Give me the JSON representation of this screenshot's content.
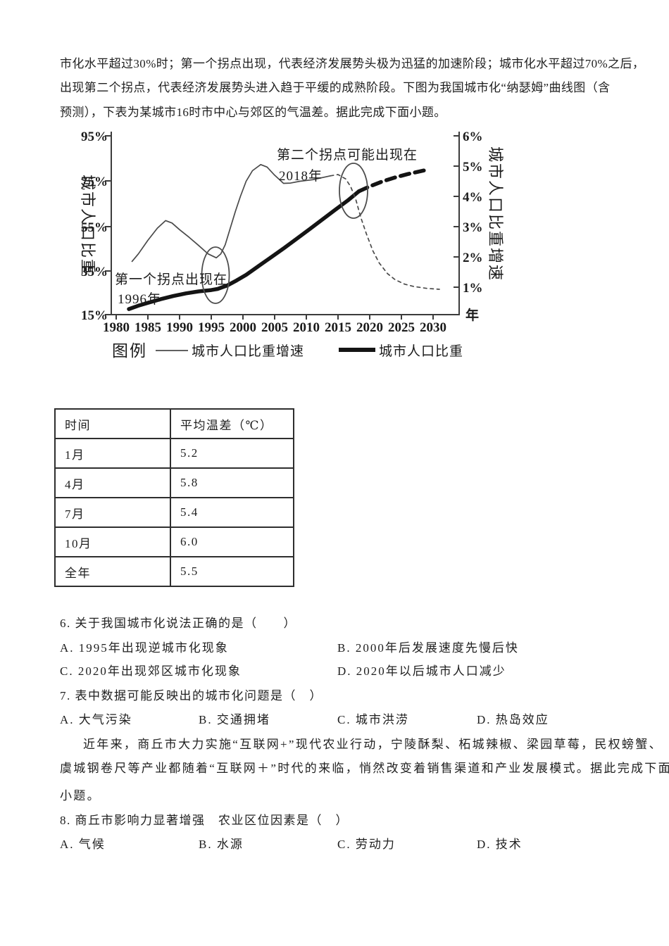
{
  "page": {
    "background": "#ffffff",
    "text_color": "#1f1f1f"
  },
  "intro": {
    "line1": "市化水平超过30%时；第一个拐点出现，代表经济发展势头极为迅猛的加速阶段；城市化水平超过70%之后，",
    "line2": "出现第二个拐点，代表经济发展势头进入趋于平缓的成熟阶段。下图为我国城市化“纳瑟姆”曲线图（含",
    "line3": "预测），下表为某城市16时市中心与郊区的气温差。据此完成下面小题。"
  },
  "figure": {
    "left_axis_label": "城市人口比重",
    "right_axis_label": "城市人口比重增速",
    "x_unit": "年",
    "left_ticks": [
      "95%",
      "75%",
      "55%",
      "35%",
      "15%"
    ],
    "right_ticks": [
      "6%",
      "5%",
      "4%",
      "3%",
      "2%",
      "1%"
    ],
    "x_ticks": [
      "1980",
      "1985",
      "1990",
      "1995",
      "2000",
      "2005",
      "2010",
      "2015",
      "2020",
      "2025",
      "2030"
    ],
    "annotation_first_line1": "第一个拐点出现在",
    "annotation_first_line2": "1996年",
    "annotation_second_line1": "第二个拐点可能出现在",
    "annotation_second_line2": "2018年",
    "legend_title": "图例",
    "legend_thin": "城市人口比重增速",
    "legend_thick": "城市人口比重"
  },
  "chart_data": {
    "type": "line",
    "title": "我国城市化“纳瑟姆”曲线图（含预测）",
    "x_axis": {
      "unit": "年",
      "ticks": [
        1980,
        1985,
        1990,
        1995,
        2000,
        2005,
        2010,
        2015,
        2020,
        2025,
        2030
      ]
    },
    "left_axis": {
      "label": "城市人口比重",
      "unit": "%",
      "range": [
        15,
        95
      ],
      "ticks": [
        15,
        35,
        55,
        75,
        95
      ]
    },
    "right_axis": {
      "label": "城市人口比重增速",
      "unit": "%",
      "range": [
        0,
        6
      ],
      "ticks": [
        1,
        2,
        3,
        4,
        5,
        6
      ]
    },
    "annotations": [
      "第一个拐点出现在1996年",
      "第二个拐点可能出现在2018年"
    ],
    "legend_position": "bottom",
    "series": [
      {
        "name": "城市人口比重",
        "axis": "left",
        "line": "thick",
        "dash_pattern": "13 8",
        "solid": [
          [
            1982,
            17.5
          ],
          [
            1983.5,
            19
          ],
          [
            1985,
            20.3
          ],
          [
            1987,
            21.9
          ],
          [
            1989,
            23.3
          ],
          [
            1991,
            24.5
          ],
          [
            1993,
            25.4
          ],
          [
            1995,
            26
          ],
          [
            1996,
            26.5
          ],
          [
            1997.5,
            28
          ],
          [
            1999,
            30.3
          ],
          [
            2000.5,
            32.8
          ],
          [
            2002.5,
            36.8
          ],
          [
            2004.5,
            40.8
          ],
          [
            2006.5,
            44.8
          ],
          [
            2008.5,
            49
          ],
          [
            2010.5,
            53.2
          ],
          [
            2012.5,
            57.5
          ],
          [
            2014.5,
            61.8
          ],
          [
            2016.5,
            66
          ],
          [
            2018.3,
            70.2
          ]
        ],
        "dashed": [
          [
            2018.3,
            70.2
          ],
          [
            2020,
            72.4
          ],
          [
            2022,
            74.6
          ],
          [
            2024,
            76.4
          ],
          [
            2026,
            77.9
          ],
          [
            2029,
            79.8
          ]
        ]
      },
      {
        "name": "城市人口比重增速",
        "axis": "right",
        "line": "thin",
        "dash_pattern": "4.5 5",
        "solid": [
          [
            1982.5,
            1.85
          ],
          [
            1983.5,
            2.1
          ],
          [
            1985,
            2.55
          ],
          [
            1986.5,
            2.95
          ],
          [
            1987.8,
            3.2
          ],
          [
            1988.8,
            3.12
          ],
          [
            1990,
            2.9
          ],
          [
            1991.5,
            2.65
          ],
          [
            1993,
            2.38
          ],
          [
            1994.5,
            2.1
          ],
          [
            1995.8,
            1.97
          ],
          [
            1996.5,
            2.1
          ],
          [
            1997.2,
            2.4
          ],
          [
            1998,
            2.95
          ],
          [
            1998.8,
            3.5
          ],
          [
            1999.6,
            4
          ],
          [
            2000.5,
            4.5
          ],
          [
            2001.5,
            4.85
          ],
          [
            2002.8,
            5.05
          ],
          [
            2003.8,
            4.97
          ],
          [
            2005,
            4.7
          ],
          [
            2006.4,
            4.43
          ],
          [
            2007.5,
            4.44
          ],
          [
            2009,
            4.5
          ],
          [
            2011,
            4.55
          ],
          [
            2013.8,
            4.68
          ]
        ],
        "dashed": [
          [
            2013.8,
            4.68
          ],
          [
            2015,
            4.72
          ],
          [
            2016.2,
            4.58
          ],
          [
            2017,
            4.32
          ],
          [
            2017.8,
            3.9
          ],
          [
            2018.6,
            3.3
          ],
          [
            2019.5,
            2.75
          ],
          [
            2020.5,
            2.2
          ],
          [
            2021.5,
            1.8
          ],
          [
            2022.8,
            1.45
          ],
          [
            2024,
            1.25
          ],
          [
            2025.5,
            1.1
          ],
          [
            2027,
            1.02
          ],
          [
            2029,
            0.96
          ],
          [
            2031,
            0.93
          ]
        ]
      }
    ]
  },
  "table": {
    "col1_header": "时间",
    "col2_header": "平均温差（℃）",
    "rows": [
      {
        "time": "1月",
        "value": "5.2"
      },
      {
        "time": "4月",
        "value": "5.8"
      },
      {
        "time": "7月",
        "value": "5.4"
      },
      {
        "time": "10月",
        "value": "6.0"
      },
      {
        "time": "全年",
        "value": "5.5"
      }
    ]
  },
  "questions": {
    "q6_stem": "6. 关于我国城市化说法正确的是（　　）",
    "q6_a": "A. 1995年出现逆城市化现象",
    "q6_b": "B. 2000年后发展速度先慢后快",
    "q6_c": "C. 2020年出现郊区城市化现象",
    "q6_d": "D. 2020年以后城市人口减少",
    "q7_stem": "7. 表中数据可能反映出的城市化问题是（　）",
    "q7_a": "A. 大气污染",
    "q7_b": "B. 交通拥堵",
    "q7_c": "C. 城市洪涝",
    "q7_d": "D. 热岛效应",
    "para_line1": "近年来，商丘市大力实施“互联网+”现代农业行动，宁陵酥梨、柘城辣椒、梁园草莓，民权螃蟹、",
    "para_line2": "虞城钢卷尺等产业都随着“互联网＋”时代的来临，悄然改变着销售渠道和产业发展模式。据此完成下面",
    "para_line3": "小题。",
    "q8_stem": "8. 商丘市影响力显著增强　农业区位因素是（　）",
    "q8_a": "A. 气候",
    "q8_b": "B. 水源",
    "q8_c": "C. 劳动力",
    "q8_d": "D. 技术"
  }
}
